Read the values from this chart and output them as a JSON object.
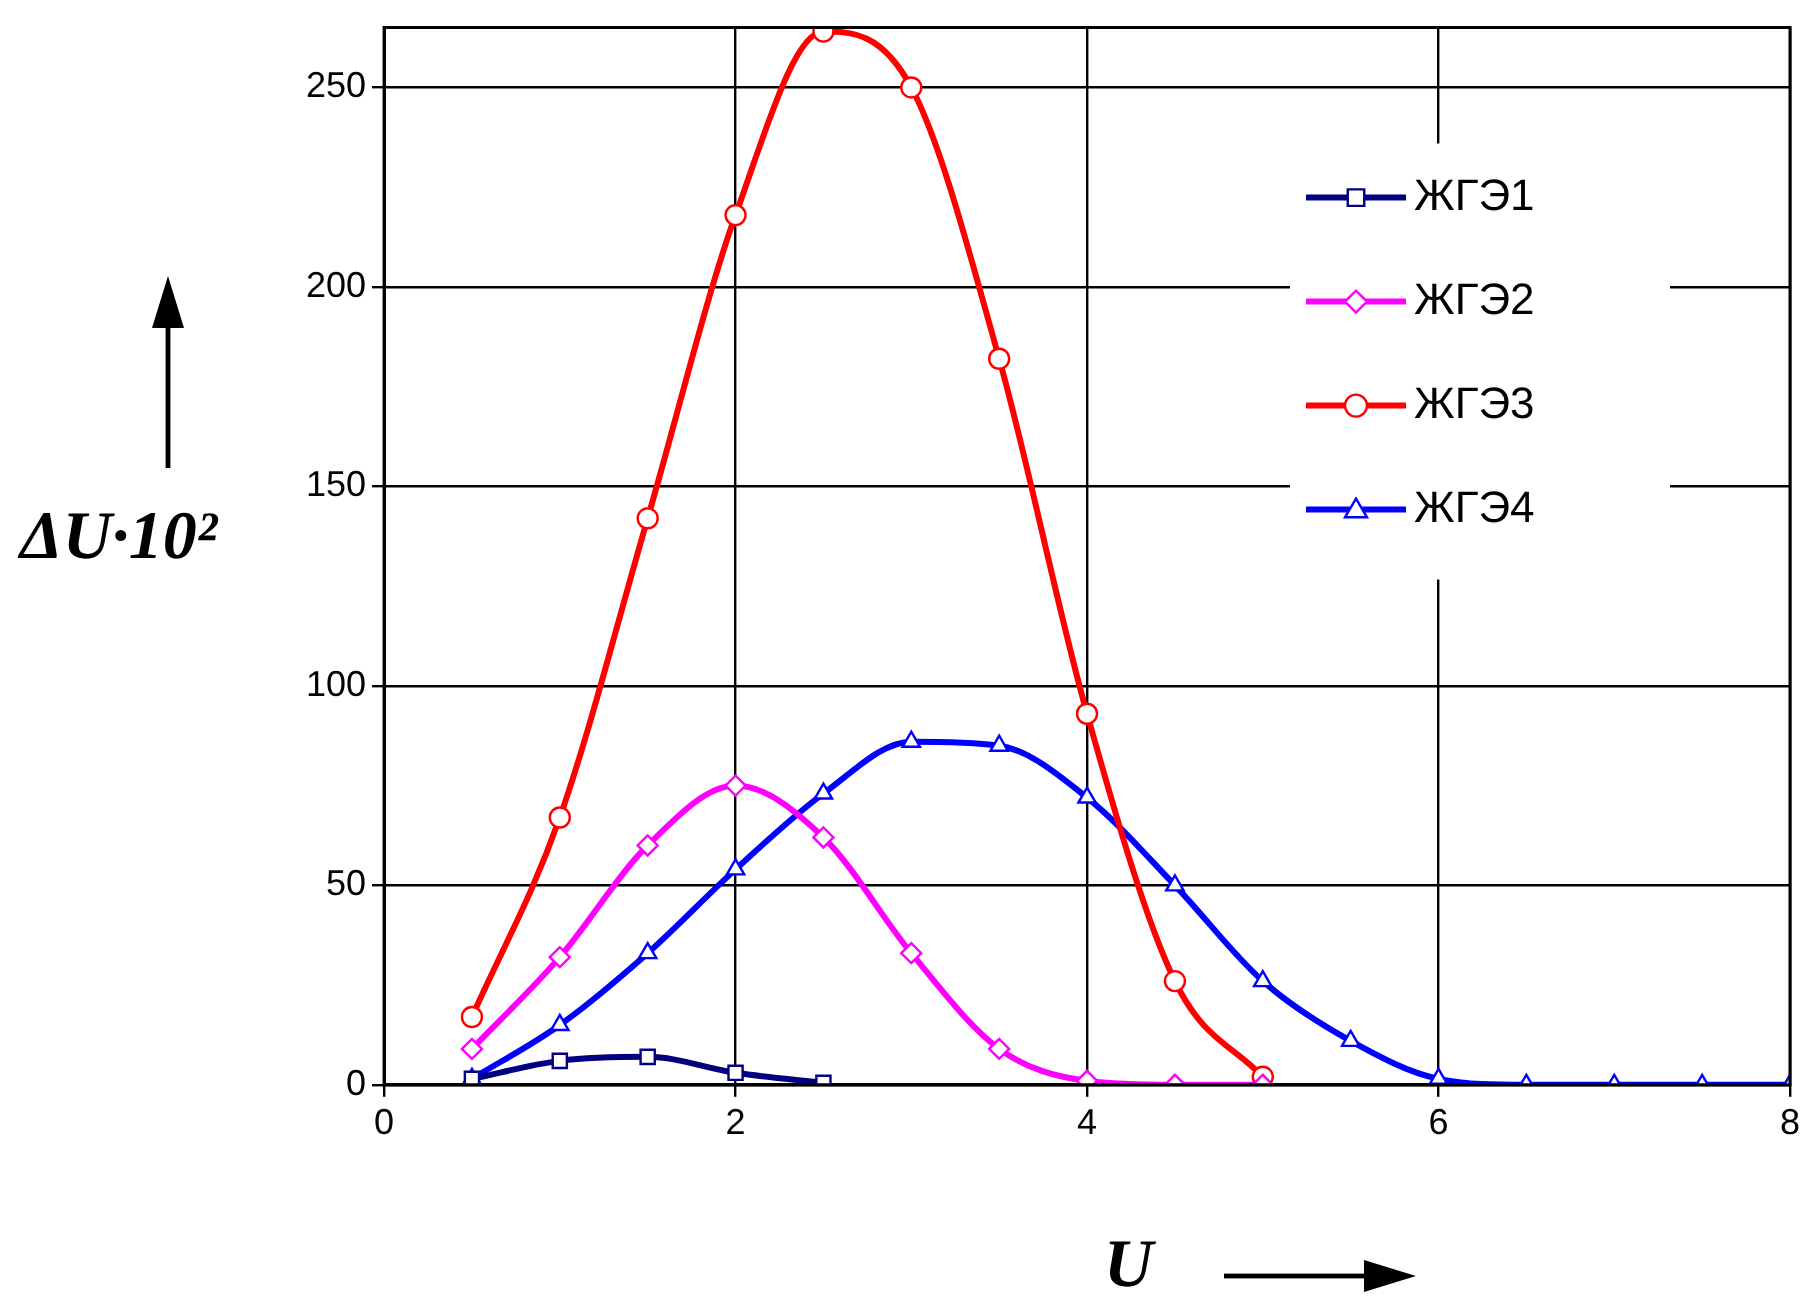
{
  "chart_data": {
    "type": "line",
    "xlabel": "U",
    "ylabel": "ΔU·10²",
    "series": [
      {
        "name": "ЖГЭ1",
        "color": "#000080",
        "marker": "square",
        "x": [
          0.5,
          1,
          1.5,
          2,
          2.5
        ],
        "values": [
          1.5,
          6,
          7,
          3,
          0.5
        ]
      },
      {
        "name": "ЖГЭ2",
        "color": "#ff00ff",
        "marker": "diamond",
        "x": [
          0.5,
          1,
          1.5,
          2,
          2.5,
          3,
          3.5,
          4,
          4.5,
          5
        ],
        "values": [
          9,
          32,
          60,
          75,
          62,
          33,
          9,
          1,
          0,
          0
        ]
      },
      {
        "name": "ЖГЭ3",
        "color": "#ff0000",
        "marker": "circle",
        "x": [
          0.5,
          1,
          1.5,
          2,
          2.5,
          3,
          3.5,
          4,
          4.5,
          5
        ],
        "values": [
          17,
          67,
          142,
          218,
          264,
          250,
          182,
          93,
          26,
          2
        ]
      },
      {
        "name": "ЖГЭ4",
        "color": "#0000ff",
        "marker": "triangle",
        "x": [
          0.5,
          1,
          1.5,
          2,
          2.5,
          3,
          3.5,
          4,
          4.5,
          5,
          5.5,
          6,
          6.5,
          7,
          7.5,
          8
        ],
        "values": [
          1.5,
          15,
          33,
          54,
          73,
          86,
          85,
          72,
          50,
          26,
          11,
          1.5,
          0,
          0,
          0,
          0
        ]
      }
    ],
    "xlim": [
      0,
      8
    ],
    "xticks": [
      0,
      2,
      4,
      6,
      8
    ],
    "ylim": [
      0,
      265
    ],
    "yticks": [
      0,
      50,
      100,
      150,
      200,
      250
    ],
    "grid": true,
    "legend": "top right",
    "line_style": "solid"
  }
}
